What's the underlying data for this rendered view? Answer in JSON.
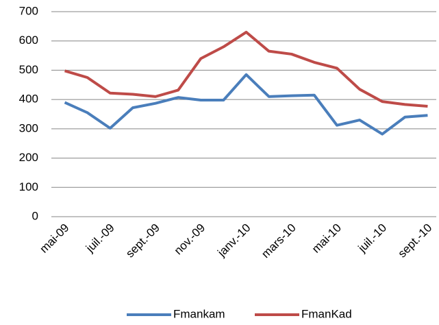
{
  "chart_data": {
    "type": "line",
    "categories": [
      "mai-09",
      null,
      "juil.-09",
      null,
      "sept.-09",
      null,
      "nov.-09",
      null,
      "janv.-10",
      null,
      "mars-10",
      null,
      "mai-10",
      null,
      "juil.-10",
      null,
      "sept.-10"
    ],
    "series": [
      {
        "name": "Fmankam",
        "color": "#4a7ebb",
        "values": [
          390,
          355,
          302,
          372,
          387,
          407,
          398,
          398,
          485,
          410,
          413,
          415,
          312,
          330,
          282,
          340,
          346
        ]
      },
      {
        "name": "FmanKad",
        "color": "#be4b48",
        "values": [
          498,
          475,
          422,
          418,
          410,
          432,
          540,
          580,
          630,
          565,
          555,
          527,
          507,
          435,
          393,
          383,
          377
        ]
      }
    ],
    "ylim": [
      0,
      700
    ],
    "yticks": [
      0,
      100,
      200,
      300,
      400,
      500,
      600,
      700
    ],
    "grid": true,
    "legend": "bottom"
  }
}
